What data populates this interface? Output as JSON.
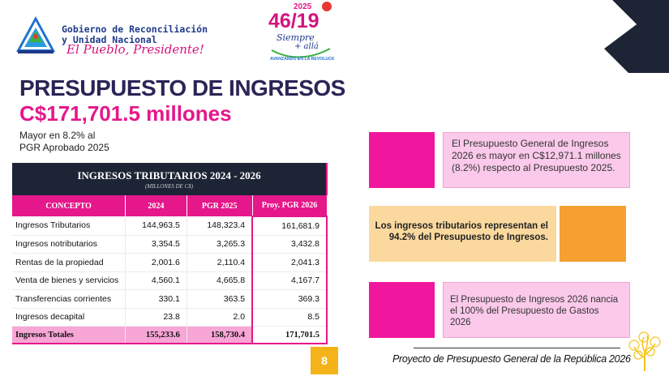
{
  "header": {
    "gov_line1": "Gobierno de Reconciliación",
    "gov_line2": "y Unidad Nacional",
    "slogan": "El Pueblo, Presidente!",
    "emblem": {
      "year": "2025",
      "number": "46/19",
      "text1": "Siempre",
      "text2": "+ allá",
      "text3": "AVANZANDO EN LA REVOLUCIÓN!"
    }
  },
  "title": "PRESUPUESTO DE INGRESOS",
  "amount": "C$171,701.5 millones",
  "note_line1": "Mayor  en 8.2% al",
  "note_line2": "PGR Aprobado 2025",
  "table": {
    "title": "INGRESOS TRIBUTARIOS 2024 - 2026",
    "subtitle": "(MILLONES DE C$)",
    "columns": [
      "CONCEPTO",
      "2024",
      "PGR 2025",
      "Proy. PGR 2026"
    ],
    "rows": [
      [
        "Ingresos Tributarios",
        "144,963.5",
        "148,323.4",
        "161,681.9"
      ],
      [
        "Ingresos notributarios",
        "3,354.5",
        "3,265.3",
        "3,432.8"
      ],
      [
        "Rentas de la propiedad",
        "2,001.6",
        "2,110.4",
        "2,041.3"
      ],
      [
        "Venta de bienes y servicios",
        "4,560.1",
        "4,665.8",
        "4,167.7"
      ],
      [
        "Transferencias corrientes",
        "330.1",
        "363.5",
        "369.3"
      ],
      [
        "Ingresos decapital",
        "23.8",
        "2.0",
        "8.5"
      ]
    ],
    "total": [
      "Ingresos Totales",
      "155,233.6",
      "158,730.4",
      "171,701.5"
    ]
  },
  "box1_text": "El Presupuesto General de Ingresos 2026 es mayor en C$12,971.1 millones (8.2%) respecto al Presupuesto 2025.",
  "box2_text": "Los ingresos tributarios representan el 94.2% del Presupuesto de Ingresos.",
  "box3_text": "El Presupuesto de Ingresos 2026 nancia el 100% del Presupuesto de Gastos 2026",
  "page_number": "8",
  "footer": "Proyecto de Presupuesto General de la República 2026",
  "colors": {
    "navy": "#2a2556",
    "magenta": "#e5178a",
    "dark": "#1d2435",
    "orange": "#f5a030",
    "yellow": "#f5b31a"
  }
}
